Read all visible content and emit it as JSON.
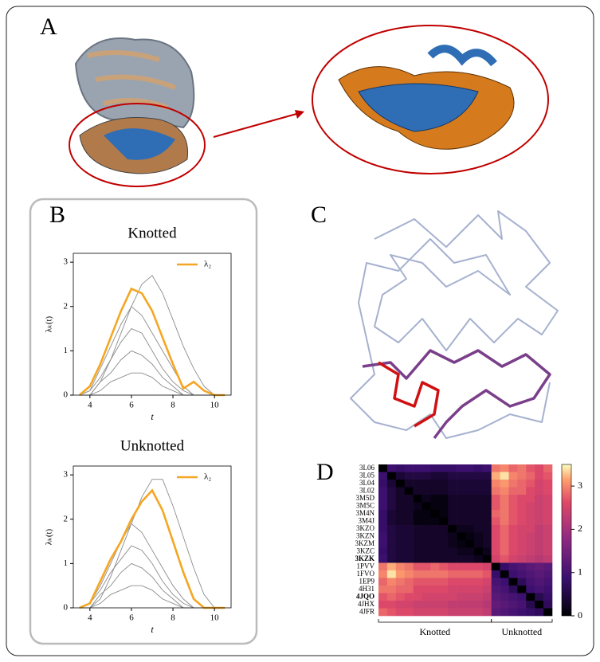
{
  "panel_labels": [
    "A",
    "B",
    "C",
    "D"
  ],
  "chart_data": [
    {
      "type": "line",
      "title": "Knotted",
      "x_label": "t",
      "y_label": "λₖ(t)",
      "x": [
        3.5,
        4,
        4.5,
        5,
        5.5,
        6,
        6.5,
        7,
        7.5,
        8,
        8.5,
        9,
        9.5,
        10,
        10.5
      ],
      "xlim": [
        3.2,
        10.8
      ],
      "xticks": [
        4,
        6,
        8,
        10
      ],
      "ylim": [
        0,
        3.2
      ],
      "yticks": [
        0,
        1,
        2,
        3
      ],
      "legend": "upper right",
      "series": [
        {
          "color": "#8c8c8c",
          "values": [
            0,
            0,
            0.3,
            0.8,
            1.4,
            2.0,
            2.5,
            2.7,
            2.3,
            1.7,
            1.1,
            0.6,
            0.2,
            0,
            0
          ]
        },
        {
          "color": "#8c8c8c",
          "values": [
            0,
            0.1,
            0.6,
            1.1,
            1.6,
            2.0,
            1.8,
            1.4,
            1.0,
            0.6,
            0.2,
            0,
            0,
            0,
            0
          ]
        },
        {
          "color": "#8c8c8c",
          "values": [
            0,
            0.1,
            0.4,
            0.8,
            1.2,
            1.5,
            1.4,
            1.0,
            0.6,
            0.3,
            0.1,
            0,
            0,
            0,
            0
          ]
        },
        {
          "color": "#8c8c8c",
          "values": [
            0,
            0,
            0.3,
            0.5,
            0.8,
            1.0,
            0.9,
            0.7,
            0.4,
            0.2,
            0,
            0,
            0,
            0,
            0
          ]
        },
        {
          "color": "#8c8c8c",
          "values": [
            0,
            0,
            0.1,
            0.3,
            0.4,
            0.5,
            0.5,
            0.4,
            0.2,
            0.1,
            0,
            0,
            0,
            0,
            0
          ]
        },
        {
          "name": "λ₂",
          "color": "#f5a623",
          "values": [
            0,
            0.2,
            0.7,
            1.3,
            1.9,
            2.4,
            2.3,
            1.9,
            1.3,
            0.7,
            0.15,
            0.3,
            0.1,
            0,
            0
          ]
        }
      ]
    },
    {
      "type": "line",
      "title": "Unknotted",
      "x_label": "t",
      "y_label": "λₖ(t)",
      "x": [
        3.5,
        4,
        4.5,
        5,
        5.5,
        6,
        6.5,
        7,
        7.5,
        8,
        8.5,
        9,
        9.5,
        10,
        10.5
      ],
      "xlim": [
        3.2,
        10.8
      ],
      "xticks": [
        4,
        6,
        8,
        10
      ],
      "ylim": [
        0,
        3.2
      ],
      "yticks": [
        0,
        1,
        2,
        3
      ],
      "legend": "upper right",
      "series": [
        {
          "color": "#8c8c8c",
          "values": [
            0,
            0,
            0.2,
            0.7,
            1.3,
            1.9,
            2.5,
            2.9,
            2.9,
            2.3,
            1.6,
            0.9,
            0.3,
            0,
            0
          ]
        },
        {
          "color": "#8c8c8c",
          "values": [
            0,
            0.1,
            0.5,
            1.0,
            1.5,
            1.9,
            1.7,
            1.3,
            0.9,
            0.5,
            0.2,
            0,
            0,
            0,
            0
          ]
        },
        {
          "color": "#8c8c8c",
          "values": [
            0,
            0.1,
            0.4,
            0.8,
            1.1,
            1.4,
            1.3,
            1.0,
            0.6,
            0.3,
            0.1,
            0,
            0,
            0,
            0
          ]
        },
        {
          "color": "#8c8c8c",
          "values": [
            0,
            0,
            0.3,
            0.5,
            0.8,
            1.0,
            0.9,
            0.7,
            0.4,
            0.2,
            0,
            0,
            0,
            0,
            0
          ]
        },
        {
          "color": "#8c8c8c",
          "values": [
            0,
            0,
            0.1,
            0.3,
            0.4,
            0.5,
            0.5,
            0.4,
            0.2,
            0.1,
            0,
            0,
            0,
            0,
            0
          ]
        },
        {
          "name": "λ₂",
          "color": "#f5a623",
          "values": [
            0,
            0.1,
            0.6,
            1.1,
            1.5,
            2.0,
            2.4,
            2.65,
            2.2,
            1.5,
            0.8,
            0.2,
            0,
            0,
            0
          ]
        }
      ]
    },
    {
      "type": "heatmap",
      "categories": [
        "3L06",
        "3L05",
        "3L04",
        "3L02",
        "3M5D",
        "3M5C",
        "3M4N",
        "3M4J",
        "3KZO",
        "3KZN",
        "3KZM",
        "3KZC",
        "3KZK",
        "1PVV",
        "1FVO",
        "1EP9",
        "4H31",
        "4JQO",
        "4JHX",
        "4JFR"
      ],
      "bold_rows": [
        12,
        17
      ],
      "zlim": [
        0,
        3.5
      ],
      "colorbar_ticks": [
        0,
        1,
        2,
        3
      ],
      "column_groups": [
        {
          "label": "Knotted",
          "start": 0,
          "end": 12
        },
        {
          "label": "Unknotted",
          "start": 13,
          "end": 19
        }
      ],
      "matrix": [
        [
          0,
          0.9,
          0.8,
          0.9,
          0.9,
          0.9,
          0.8,
          0.8,
          0.8,
          0.9,
          0.9,
          0.8,
          0.9,
          2.9,
          3.0,
          2.8,
          2.9,
          2.7,
          2.6,
          2.8
        ],
        [
          0.9,
          0,
          0.4,
          0.5,
          0.5,
          0.5,
          0.4,
          0.4,
          0.5,
          0.5,
          0.5,
          0.5,
          0.5,
          3.2,
          3.4,
          3.0,
          2.9,
          2.8,
          2.6,
          2.7
        ],
        [
          0.8,
          0.4,
          0,
          0.3,
          0.3,
          0.3,
          0.3,
          0.3,
          0.4,
          0.4,
          0.4,
          0.4,
          0.4,
          3.0,
          3.1,
          2.9,
          2.8,
          2.7,
          2.5,
          2.6
        ],
        [
          0.9,
          0.5,
          0.3,
          0,
          0.3,
          0.3,
          0.3,
          0.3,
          0.4,
          0.4,
          0.4,
          0.4,
          0.4,
          2.9,
          3.0,
          2.8,
          2.8,
          2.6,
          2.5,
          2.6
        ],
        [
          0.9,
          0.5,
          0.3,
          0.3,
          0,
          0.2,
          0.1,
          0.1,
          0.3,
          0.3,
          0.3,
          0.3,
          0.3,
          2.7,
          2.9,
          2.7,
          2.6,
          2.6,
          2.4,
          2.5
        ],
        [
          0.9,
          0.5,
          0.3,
          0.3,
          0.2,
          0,
          0.1,
          0.1,
          0.3,
          0.3,
          0.3,
          0.3,
          0.3,
          2.7,
          2.9,
          2.7,
          2.6,
          2.5,
          2.4,
          2.5
        ],
        [
          0.8,
          0.4,
          0.3,
          0.3,
          0.1,
          0.1,
          0,
          0.1,
          0.3,
          0.3,
          0.3,
          0.3,
          0.3,
          2.8,
          2.9,
          2.7,
          2.6,
          2.5,
          2.4,
          2.5
        ],
        [
          0.8,
          0.4,
          0.3,
          0.3,
          0.1,
          0.1,
          0.1,
          0,
          0.3,
          0.3,
          0.3,
          0.3,
          0.3,
          2.7,
          2.9,
          2.7,
          2.6,
          2.5,
          2.4,
          2.5
        ],
        [
          0.8,
          0.5,
          0.4,
          0.4,
          0.3,
          0.3,
          0.3,
          0.3,
          0,
          0.2,
          0.2,
          0.3,
          0.3,
          2.6,
          2.8,
          2.6,
          2.5,
          2.5,
          2.3,
          2.4
        ],
        [
          0.9,
          0.5,
          0.4,
          0.4,
          0.3,
          0.3,
          0.3,
          0.3,
          0.2,
          0,
          0.1,
          0.2,
          0.3,
          2.6,
          2.8,
          2.6,
          2.5,
          2.4,
          2.3,
          2.4
        ],
        [
          0.9,
          0.5,
          0.4,
          0.4,
          0.3,
          0.3,
          0.3,
          0.3,
          0.2,
          0.1,
          0,
          0.2,
          0.3,
          2.6,
          2.8,
          2.6,
          2.5,
          2.4,
          2.3,
          2.4
        ],
        [
          0.8,
          0.5,
          0.4,
          0.4,
          0.3,
          0.3,
          0.3,
          0.3,
          0.3,
          0.2,
          0.2,
          0,
          0.2,
          2.6,
          2.8,
          2.6,
          2.5,
          2.4,
          2.3,
          2.4
        ],
        [
          0.9,
          0.5,
          0.4,
          0.4,
          0.3,
          0.3,
          0.3,
          0.3,
          0.3,
          0.3,
          0.3,
          0.2,
          0,
          2.5,
          2.7,
          2.5,
          2.4,
          2.3,
          2.2,
          2.3
        ],
        [
          2.9,
          3.2,
          3.0,
          2.9,
          2.7,
          2.7,
          2.8,
          2.7,
          2.6,
          2.6,
          2.6,
          2.6,
          2.5,
          0,
          0.8,
          1.0,
          1.1,
          1.2,
          1.3,
          1.2
        ],
        [
          3.0,
          3.4,
          3.1,
          3.0,
          2.9,
          2.9,
          2.9,
          2.9,
          2.8,
          2.8,
          2.8,
          2.8,
          2.7,
          0.8,
          0,
          0.9,
          1.0,
          1.1,
          1.2,
          1.1
        ],
        [
          2.8,
          3.0,
          2.9,
          2.8,
          2.7,
          2.7,
          2.7,
          2.7,
          2.6,
          2.6,
          2.6,
          2.6,
          2.5,
          1.0,
          0.9,
          0,
          0.7,
          1.0,
          1.1,
          1.0
        ],
        [
          2.9,
          2.9,
          2.8,
          2.8,
          2.6,
          2.6,
          2.6,
          2.6,
          2.5,
          2.5,
          2.5,
          2.5,
          2.4,
          1.1,
          1.0,
          0.7,
          0,
          0.9,
          1.0,
          0.9
        ],
        [
          2.7,
          2.8,
          2.7,
          2.6,
          2.6,
          2.5,
          2.5,
          2.5,
          2.5,
          2.4,
          2.4,
          2.4,
          2.3,
          1.2,
          1.1,
          1.0,
          0.9,
          0,
          0.6,
          0.8
        ],
        [
          2.6,
          2.6,
          2.5,
          2.5,
          2.4,
          2.4,
          2.4,
          2.4,
          2.3,
          2.3,
          2.3,
          2.3,
          2.2,
          1.3,
          1.2,
          1.1,
          1.0,
          0.6,
          0,
          0.7
        ],
        [
          2.8,
          2.7,
          2.6,
          2.6,
          2.5,
          2.5,
          2.5,
          2.5,
          2.4,
          2.4,
          2.4,
          2.4,
          2.3,
          1.2,
          1.1,
          1.0,
          0.9,
          0.8,
          0.7,
          0
        ]
      ]
    }
  ]
}
